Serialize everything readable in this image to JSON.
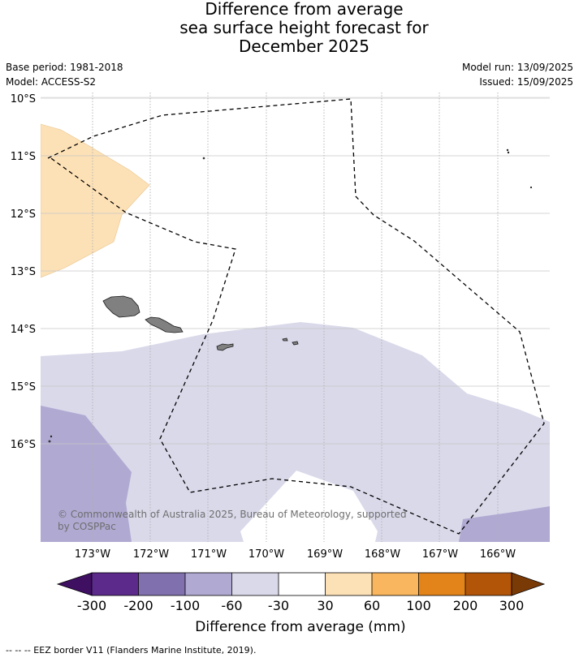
{
  "title_lines": [
    "Difference from average",
    "sea surface height forecast for",
    "December 2025"
  ],
  "meta_left": [
    "Base period: 1981-2018",
    "Model: ACCESS-S2"
  ],
  "meta_right": [
    "Model run: 13/09/2025",
    "Issued: 15/09/2025"
  ],
  "map": {
    "lon_labels": [
      "173°W",
      "172°W",
      "171°W",
      "170°W",
      "169°W",
      "168°W",
      "167°W",
      "166°W"
    ],
    "lat_labels": [
      "10°S",
      "11°S",
      "12°S",
      "13°S",
      "14°S",
      "15°S",
      "16°S"
    ],
    "copyright_lines": [
      "© Commonwealth of Australia 2025, Bureau of Meteorology, supported",
      "by COSPPac"
    ]
  },
  "colorbar": {
    "tick_labels": [
      "-300",
      "-200",
      "-100",
      "-60",
      "-30",
      "30",
      "60",
      "100",
      "200",
      "300"
    ],
    "colors": [
      "#3f0f62",
      "#5b2a8b",
      "#8070ae",
      "#b0a9d2",
      "#d9d9ea",
      "#ffffff",
      "#fde1b6",
      "#f9b65e",
      "#e3841a",
      "#b25508",
      "#7a3a06"
    ],
    "label": "Difference from average (mm)"
  },
  "footer_text": "--  --  -- EEZ border V11 (Flanders Marine Institute, 2019).",
  "colors": {
    "land": "#808080",
    "grid": "#c6c6c6",
    "eez": "#000000",
    "anomaly_levels": {
      "-100_to_-60": "#b0a9d2",
      "-60_to_-30": "#d9d9ea",
      "-30_to_30": "#ffffff",
      "30_to_60": "#fde1b6"
    }
  }
}
